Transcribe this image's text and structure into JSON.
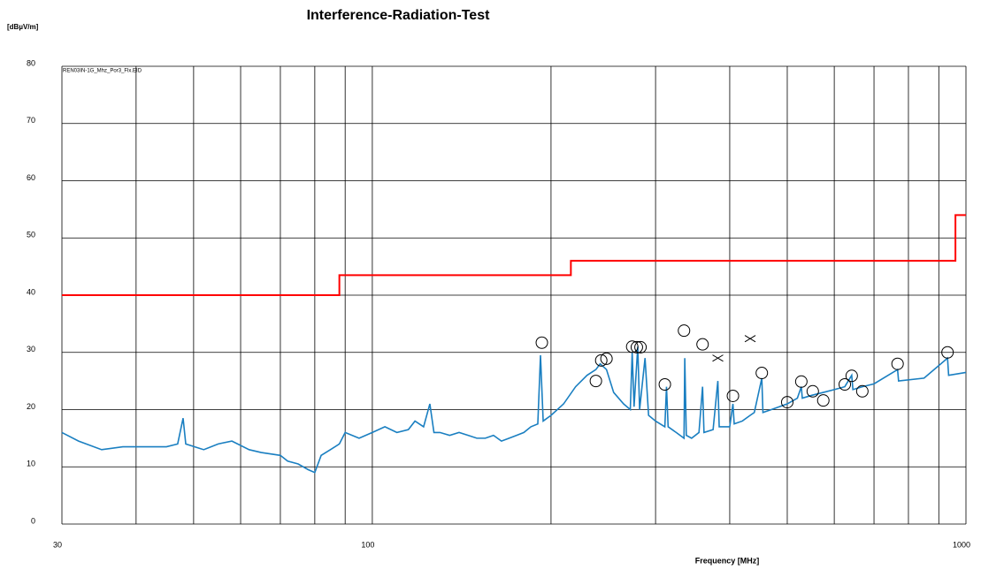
{
  "chart_data": {
    "type": "line",
    "title": "Interference-Radiation-Test",
    "ylabel": "[dBµV/m]",
    "xlabel": "Frequency [MHz]",
    "annotation": "REN03IN-1G_Mhz_Por3_Flx.EID",
    "xscale": "log",
    "xlim": [
      30,
      1000
    ],
    "xticks": [
      30,
      100,
      1000
    ],
    "xminor_grid": [
      40,
      50,
      60,
      70,
      80,
      90,
      200,
      300,
      400,
      500,
      600,
      700,
      800,
      900
    ],
    "ylim": [
      0,
      80
    ],
    "yticks": [
      0,
      10,
      20,
      30,
      40,
      50,
      60,
      70,
      80
    ],
    "grid": true,
    "series": [
      {
        "style": "line",
        "color": "#1a7fc1",
        "x": [
          30,
          32,
          35,
          38,
          40,
          45,
          47,
          48,
          48.5,
          52,
          55,
          58,
          62,
          65,
          70,
          72,
          75,
          78,
          80,
          82,
          85,
          88,
          90,
          95,
          100,
          105,
          110,
          115,
          118,
          122,
          125,
          127,
          130,
          135,
          140,
          145,
          150,
          155,
          160,
          165,
          170,
          175,
          180,
          185,
          190,
          192,
          194,
          200,
          210,
          220,
          230,
          238,
          242,
          248,
          255,
          265,
          272,
          274,
          276,
          280,
          282,
          288,
          292,
          300,
          311,
          313,
          315,
          325,
          335,
          336,
          338,
          345,
          355,
          360,
          362,
          375,
          382,
          384,
          400,
          405,
          407,
          420,
          433,
          440,
          453,
          455,
          470,
          500,
          520,
          528,
          530,
          550,
          575,
          600,
          625,
          642,
          645,
          669,
          700,
          767,
          770,
          850,
          931,
          935,
          1000
        ],
        "values": [
          16,
          14.5,
          13,
          13.5,
          13.5,
          13.5,
          14,
          18.5,
          14,
          13,
          14,
          14.5,
          13,
          12.5,
          12,
          11,
          10.5,
          9.5,
          9,
          12,
          13,
          14,
          16,
          15,
          16,
          17,
          16,
          16.5,
          18,
          17,
          21,
          16,
          16,
          15.5,
          16,
          15.5,
          15,
          15,
          15.5,
          14.5,
          15,
          15.5,
          16,
          17,
          17.5,
          29.5,
          18,
          19,
          21,
          24,
          26,
          27,
          28,
          27,
          23,
          21,
          20,
          30,
          20.5,
          31,
          20,
          29,
          19,
          18,
          17,
          24,
          17,
          16,
          15,
          29,
          15.5,
          15,
          16,
          24,
          16,
          16.5,
          25,
          17,
          17,
          21,
          17.5,
          18,
          19,
          19.5,
          25.5,
          19.5,
          20,
          21,
          22,
          24,
          22,
          22.5,
          23,
          23.5,
          24,
          26,
          23.5,
          24,
          24.5,
          27,
          25,
          25.5,
          29,
          26,
          26.5
        ]
      },
      {
        "style": "step",
        "color": "#ff0000",
        "x": [
          30,
          88,
          88,
          216,
          216,
          960,
          960,
          1000
        ],
        "values": [
          40,
          40,
          43.5,
          43.5,
          46,
          46,
          54,
          54
        ]
      },
      {
        "style": "circle",
        "color": "#000000",
        "x": [
          193,
          238,
          243,
          248,
          274,
          279,
          283,
          311,
          335,
          360,
          405,
          453,
          500,
          528,
          552,
          575,
          625,
          642,
          669,
          767,
          931
        ],
        "values": [
          31.7,
          25.0,
          28.6,
          28.9,
          31.0,
          30.9,
          30.9,
          24.4,
          33.8,
          31.4,
          22.4,
          26.4,
          21.3,
          24.9,
          23.2,
          21.6,
          24.4,
          25.9,
          23.2,
          28.0,
          30.0
        ]
      },
      {
        "style": "cross",
        "color": "#000000",
        "x": [
          382,
          433
        ],
        "values": [
          29.0,
          32.4
        ]
      }
    ]
  }
}
